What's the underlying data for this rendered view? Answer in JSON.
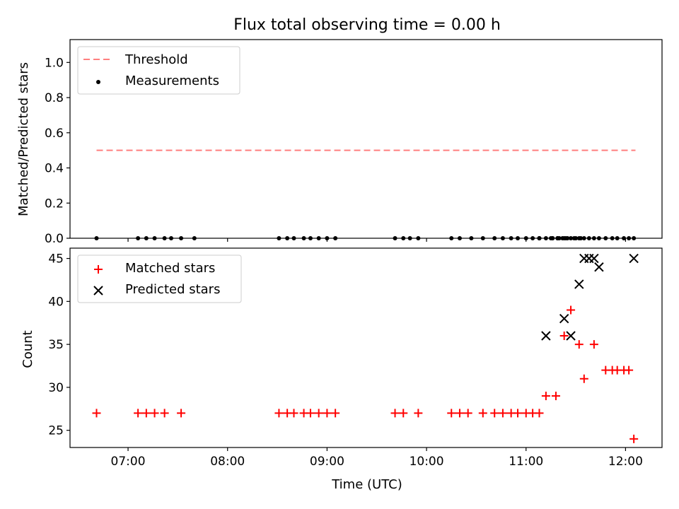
{
  "title": "Flux total observing time = 0.00 h",
  "chart_data": [
    {
      "type": "scatter",
      "panel": "top",
      "ylabel": "Matched/Predicted stars",
      "ylim": [
        0.0,
        1.13
      ],
      "yticks": [
        0.0,
        0.2,
        0.4,
        0.6,
        0.8,
        1.0
      ],
      "ytick_labels": [
        "0.0",
        "0.2",
        "0.4",
        "0.6",
        "0.8",
        "1.0"
      ],
      "legend": {
        "position": "top-left",
        "entries": [
          "Threshold",
          "Measurements"
        ]
      },
      "threshold": {
        "name": "Threshold",
        "value": 0.5,
        "x_from": "06:41",
        "x_to": "12:06",
        "color": "#ff7f7f"
      },
      "measurements": {
        "name": "Measurements",
        "color": "#000000",
        "x": [
          "06:41",
          "07:06",
          "07:11",
          "07:16",
          "07:22",
          "07:26",
          "07:32",
          "07:40",
          "08:31",
          "08:36",
          "08:40",
          "08:46",
          "08:50",
          "08:55",
          "09:00",
          "09:05",
          "09:41",
          "09:46",
          "09:50",
          "09:55",
          "10:15",
          "10:20",
          "10:27",
          "10:34",
          "10:41",
          "10:46",
          "10:51",
          "10:55",
          "11:00",
          "11:04",
          "11:08",
          "11:12",
          "11:16",
          "11:20",
          "11:24",
          "11:08",
          "11:16",
          "11:19",
          "11:22",
          "11:25",
          "11:29",
          "11:32",
          "11:35",
          "11:38",
          "11:41",
          "11:44",
          "11:08",
          "11:15",
          "11:19",
          "11:23",
          "11:27",
          "11:30",
          "11:33",
          "11:48",
          "11:52",
          "11:55",
          "11:59",
          "12:02",
          "12:05"
        ],
        "y": [
          0,
          0,
          0,
          0,
          0,
          0,
          0,
          0,
          0,
          0,
          0,
          0,
          0,
          0,
          0,
          0,
          0,
          0,
          0,
          0,
          0,
          0,
          0,
          0,
          0,
          0,
          0,
          0,
          0,
          0,
          0,
          0,
          0,
          0,
          0,
          0,
          0,
          0,
          0,
          0,
          0,
          0,
          0,
          0,
          0,
          0,
          0,
          0,
          0,
          0,
          0,
          0,
          0,
          0,
          0,
          0,
          0,
          0,
          0
        ]
      }
    },
    {
      "type": "scatter",
      "panel": "bottom",
      "xlabel": "Time (UTC)",
      "ylabel": "Count",
      "xlim": [
        "06:25",
        "12:22"
      ],
      "xticks": [
        "07:00",
        "08:00",
        "09:00",
        "10:00",
        "11:00",
        "12:00"
      ],
      "ylim": [
        23,
        46.2
      ],
      "yticks": [
        25,
        30,
        35,
        40,
        45
      ],
      "legend": {
        "position": "top-left",
        "entries": [
          "Matched stars",
          "Predicted stars"
        ]
      },
      "series": [
        {
          "name": "Matched stars",
          "marker": "+",
          "color": "#ff0000",
          "x": [
            "06:41",
            "07:06",
            "07:11",
            "07:16",
            "07:22",
            "07:32",
            "08:31",
            "08:36",
            "08:40",
            "08:46",
            "08:50",
            "08:55",
            "09:00",
            "09:05",
            "09:41",
            "09:46",
            "09:55",
            "10:15",
            "10:20",
            "10:25",
            "10:34",
            "10:41",
            "10:46",
            "10:51",
            "10:55",
            "11:00",
            "11:04",
            "11:08",
            "11:12",
            "11:18",
            "11:23",
            "11:27",
            "11:32",
            "11:35",
            "11:41",
            "11:48",
            "11:52",
            "11:55",
            "11:59",
            "12:02",
            "12:05"
          ],
          "y": [
            27,
            27,
            27,
            27,
            27,
            27,
            27,
            27,
            27,
            27,
            27,
            27,
            27,
            27,
            27,
            27,
            27,
            27,
            27,
            27,
            27,
            27,
            27,
            27,
            27,
            27,
            27,
            27,
            29,
            29,
            36,
            39,
            35,
            31,
            35,
            32,
            32,
            32,
            32,
            32,
            24
          ]
        },
        {
          "name": "Predicted stars",
          "marker": "x",
          "color": "#000000",
          "x": [
            "11:12",
            "11:23",
            "11:27",
            "11:32",
            "11:35",
            "11:38",
            "11:41",
            "11:44",
            "12:05"
          ],
          "y": [
            36,
            38,
            36,
            42,
            45,
            45,
            45,
            44,
            45
          ]
        }
      ]
    }
  ]
}
